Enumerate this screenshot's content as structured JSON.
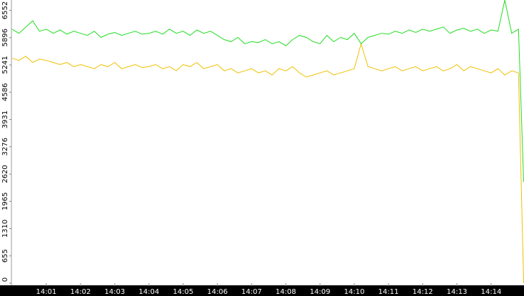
{
  "chart_data": {
    "type": "line",
    "x": [
      840.0,
      840.2,
      840.4,
      840.6,
      840.8,
      841.0,
      841.2,
      841.4,
      841.6,
      841.8,
      842.0,
      842.2,
      842.4,
      842.6,
      842.8,
      843.0,
      843.2,
      843.4,
      843.6,
      843.8,
      844.0,
      844.2,
      844.4,
      844.6,
      844.8,
      845.0,
      845.2,
      845.4,
      845.6,
      845.8,
      846.0,
      846.2,
      846.4,
      846.6,
      846.8,
      847.0,
      847.2,
      847.4,
      847.6,
      847.8,
      848.0,
      848.2,
      848.4,
      848.6,
      848.8,
      849.0,
      849.2,
      849.4,
      849.6,
      849.8,
      850.0,
      850.2,
      850.4,
      850.6,
      850.8,
      851.0,
      851.2,
      851.4,
      851.6,
      851.8,
      852.0,
      852.2,
      852.4,
      852.6,
      852.8,
      853.0,
      853.2,
      853.4,
      853.6,
      853.8,
      854.0,
      854.2,
      854.4,
      854.6,
      854.8,
      854.95
    ],
    "series": [
      {
        "color": "#22dd22",
        "values": [
          6100,
          6000,
          6150,
          6300,
          6050,
          6100,
          6000,
          6080,
          5980,
          6050,
          6000,
          5950,
          6050,
          5900,
          5980,
          6020,
          5950,
          6000,
          6050,
          5980,
          6000,
          6050,
          5980,
          6100,
          6000,
          6050,
          5950,
          6080,
          6000,
          6050,
          5950,
          5850,
          5800,
          5900,
          5750,
          5800,
          5780,
          5850,
          5750,
          5800,
          5700,
          5850,
          5950,
          5900,
          5800,
          5750,
          5950,
          5800,
          5900,
          5850,
          6000,
          5750,
          5900,
          5950,
          6000,
          5980,
          6050,
          6000,
          6080,
          6020,
          6100,
          6050,
          6100,
          6150,
          6000,
          6080,
          6120,
          6050,
          6100,
          6000,
          6080,
          6050,
          6800,
          6000,
          6100,
          2430
        ]
      },
      {
        "color": "#f0c000",
        "values": [
          5400,
          5350,
          5450,
          5300,
          5380,
          5350,
          5300,
          5250,
          5300,
          5200,
          5250,
          5200,
          5150,
          5250,
          5200,
          5300,
          5150,
          5200,
          5250,
          5180,
          5200,
          5250,
          5150,
          5200,
          5100,
          5250,
          5200,
          5300,
          5150,
          5200,
          5250,
          5100,
          5150,
          5050,
          5100,
          5150,
          5050,
          5100,
          5000,
          5150,
          5100,
          5200,
          5050,
          4950,
          5000,
          5050,
          5100,
          5000,
          5050,
          5100,
          5150,
          5750,
          5200,
          5150,
          5100,
          5150,
          5200,
          5100,
          5150,
          5200,
          5100,
          5150,
          5200,
          5100,
          5150,
          5250,
          5100,
          5200,
          5150,
          5100,
          5050,
          5150,
          5000,
          5100,
          5050,
          0
        ]
      }
    ],
    "xlim": [
      839.98,
      854.96
    ],
    "xticks": [
      {
        "value": 841,
        "label": "14:01"
      },
      {
        "value": 842,
        "label": "14:02"
      },
      {
        "value": 843,
        "label": "14:03"
      },
      {
        "value": 844,
        "label": "14:04"
      },
      {
        "value": 845,
        "label": "14:05"
      },
      {
        "value": 846,
        "label": "14:06"
      },
      {
        "value": 847,
        "label": "14:07"
      },
      {
        "value": 848,
        "label": "14:08"
      },
      {
        "value": 849,
        "label": "14:09"
      },
      {
        "value": 850,
        "label": "14:10"
      },
      {
        "value": 851,
        "label": "14:11"
      },
      {
        "value": 852,
        "label": "14:12"
      },
      {
        "value": 853,
        "label": "14:13"
      },
      {
        "value": 854,
        "label": "14:14"
      }
    ],
    "ylim": [
      0,
      6800
    ],
    "yticks": [
      0,
      655,
      1310,
      1965,
      2620,
      3276,
      3931,
      4586,
      5241,
      5896,
      6552
    ]
  }
}
